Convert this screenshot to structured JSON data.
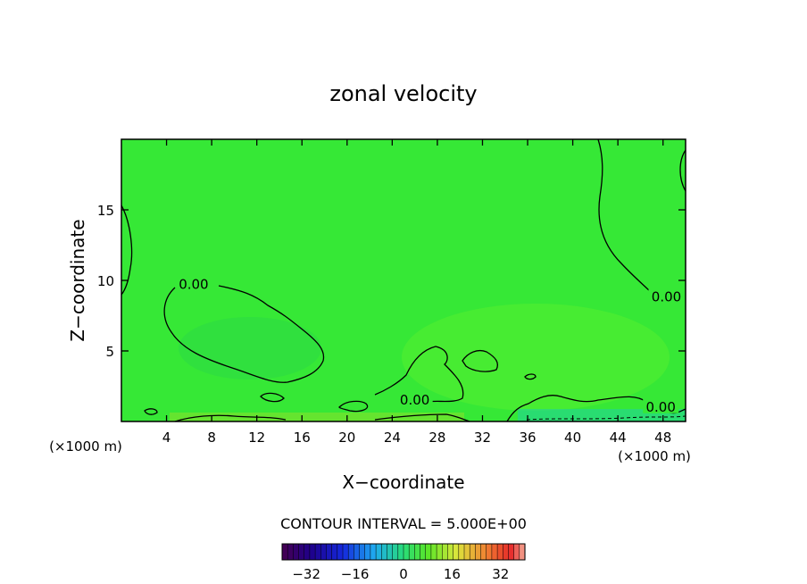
{
  "chart_data": {
    "type": "contour",
    "title": "zonal velocity",
    "xlabel": "X−coordinate",
    "ylabel": "Z−coordinate",
    "x_unit": "(×1000 m)",
    "xlim": [
      0,
      50
    ],
    "ylim": [
      0,
      20
    ],
    "x_ticks": [
      4,
      8,
      12,
      16,
      20,
      24,
      28,
      32,
      36,
      40,
      44,
      48
    ],
    "y_ticks": [
      5,
      10,
      15
    ],
    "field_color": "#36e836",
    "contour_labels": [
      {
        "text": "0.00",
        "x": 6.4,
        "y": 9.6
      },
      {
        "text": "0.00",
        "x": 26.0,
        "y": 1.4
      },
      {
        "text": "0.00",
        "x": 48.3,
        "y": 8.7
      },
      {
        "text": "0.00",
        "x": 47.8,
        "y": 0.9
      }
    ],
    "contour_interval_text": "CONTOUR INTERVAL = 5.000E+00",
    "colorbar": {
      "min": -40,
      "max": 40,
      "ticks": [
        -32,
        -16,
        0,
        16,
        32
      ],
      "segments": 44
    }
  }
}
